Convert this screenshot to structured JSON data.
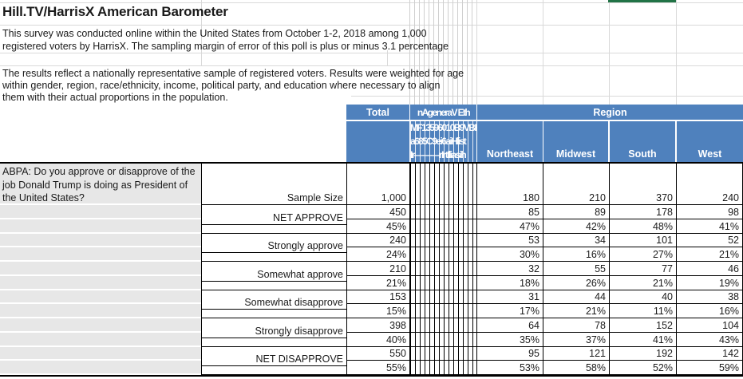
{
  "title": "Hill.TV/HarrisX American Barometer",
  "intro": {
    "line1": "This survey was conducted online within the United States from October 1-2, 2018 among 1,000",
    "line2": "registered voters by HarrisX.  The sampling margin of error of this poll is plus or minus 3.1 percentage"
  },
  "methodology": {
    "line1": "The results reflect a nationally representative sample of registered voters. Results were weighted for age",
    "line2": "within gender, region, race/ethnicity, income, political party, and education where necessary to align",
    "line3": "them with their actual proportions in the population."
  },
  "question": "ABPA: Do you approve or disapprove of the job Donald Trump is doing as President of the United States?",
  "header": {
    "total_label": "Total",
    "collapsed_group_label": "nAgeneraV Eth",
    "region_label": "Region",
    "collapsed_lines": [
      "MF13596010B9VBHAC",
      "a685C9ei6aiHlist",
      "Ir———rIrtIliasih"
    ],
    "region_columns": [
      "Northeast",
      "Midwest",
      "South",
      "West"
    ]
  },
  "table": {
    "rows": [
      {
        "label": "Sample Size",
        "values": [
          "1,000",
          "180",
          "210",
          "370",
          "240"
        ]
      },
      {
        "label": "NET APPROVE",
        "values": [
          "450",
          "85",
          "89",
          "178",
          "98"
        ]
      },
      {
        "label": "",
        "values": [
          "45%",
          "47%",
          "42%",
          "48%",
          "41%"
        ]
      },
      {
        "label": "Strongly approve",
        "values": [
          "240",
          "53",
          "34",
          "101",
          "52"
        ]
      },
      {
        "label": "",
        "values": [
          "24%",
          "30%",
          "16%",
          "27%",
          "21%"
        ]
      },
      {
        "label": "Somewhat approve",
        "values": [
          "210",
          "32",
          "55",
          "77",
          "46"
        ]
      },
      {
        "label": "",
        "values": [
          "21%",
          "18%",
          "26%",
          "21%",
          "19%"
        ]
      },
      {
        "label": "Somewhat disapprove",
        "values": [
          "153",
          "31",
          "44",
          "40",
          "38"
        ]
      },
      {
        "label": "",
        "values": [
          "15%",
          "17%",
          "21%",
          "11%",
          "16%"
        ]
      },
      {
        "label": "Strongly disapprove",
        "values": [
          "398",
          "64",
          "78",
          "152",
          "104"
        ]
      },
      {
        "label": "",
        "values": [
          "40%",
          "35%",
          "37%",
          "41%",
          "43%"
        ]
      },
      {
        "label": "NET DISAPPROVE",
        "values": [
          "550",
          "95",
          "121",
          "192",
          "142"
        ]
      },
      {
        "label": "",
        "values": [
          "55%",
          "53%",
          "58%",
          "52%",
          "59%"
        ]
      }
    ]
  },
  "colors": {
    "header_blue": "#4f81bd",
    "row_gray": "#e7e7e7",
    "selection_green": "#217346",
    "gridline": "#d9d9d9"
  }
}
